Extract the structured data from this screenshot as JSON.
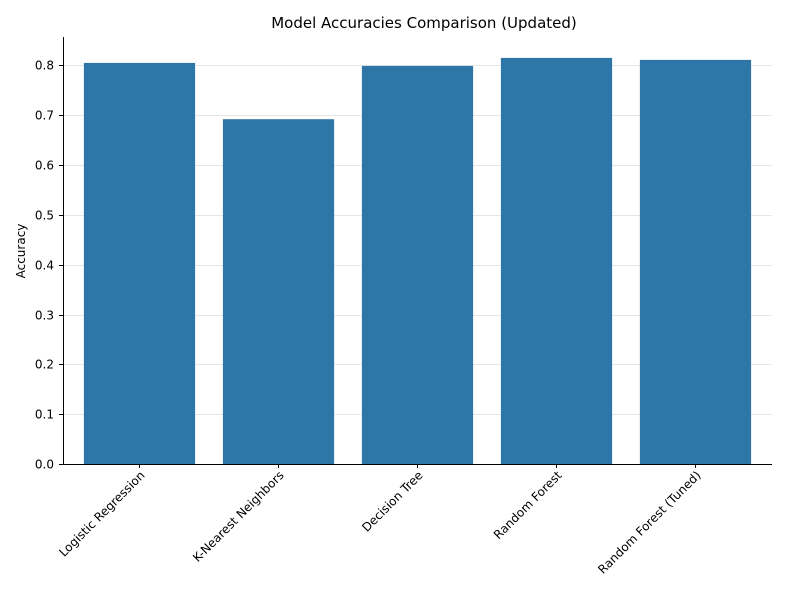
{
  "chart_data": {
    "type": "bar",
    "title": "Model Accuracies Comparison (Updated)",
    "xlabel": "",
    "ylabel": "Accuracy",
    "categories": [
      "Logistic Regression",
      "K-Nearest Neighbors",
      "Decision Tree",
      "Random Forest",
      "Random Forest (Tuned)"
    ],
    "values": [
      0.805,
      0.692,
      0.799,
      0.815,
      0.811
    ],
    "ylim": [
      0,
      0.857
    ],
    "yticks": [
      "0.0",
      "0.1",
      "0.2",
      "0.3",
      "0.4",
      "0.5",
      "0.6",
      "0.7",
      "0.8"
    ],
    "grid": true,
    "bar_color": "#2e75a8",
    "grid_color": "#e6e6e6"
  }
}
